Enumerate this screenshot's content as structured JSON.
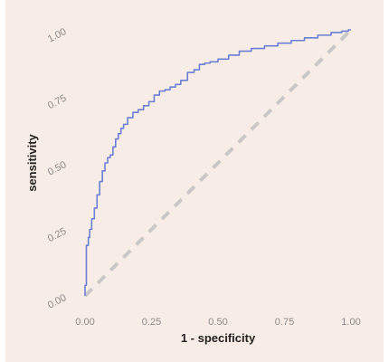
{
  "colors": {
    "background": "#f8ede6",
    "curve": "#6a7fd4",
    "reference": "#c8c8c8",
    "tick_text": "#8a8a8a",
    "axis_title": "#222222"
  },
  "chart_data": {
    "type": "line",
    "title": "",
    "xlabel": "1 - specificity",
    "ylabel": "sensitivity",
    "xlim": [
      0,
      1
    ],
    "ylim": [
      0,
      1
    ],
    "x_ticks": [
      "0.00",
      "0.25",
      "0.50",
      "0.75",
      "1.00"
    ],
    "y_ticks": [
      "0.00",
      "0.25",
      "0.50",
      "0.75",
      "1.00"
    ],
    "grid": false,
    "series": [
      {
        "style": "solid",
        "x": [
          0,
          0,
          0.01,
          0.015,
          0.02,
          0.03,
          0.04,
          0.05,
          0.06,
          0.07,
          0.08,
          0.09,
          0.1,
          0.11,
          0.12,
          0.13,
          0.14,
          0.15,
          0.17,
          0.19,
          0.21,
          0.23,
          0.25,
          0.27,
          0.29,
          0.31,
          0.33,
          0.35,
          0.37,
          0.4,
          0.42,
          0.44,
          0.46,
          0.48,
          0.52,
          0.56,
          0.6,
          0.65,
          0.7,
          0.75,
          0.8,
          0.85,
          0.9,
          0.95,
          0.98,
          1.0
        ],
        "y": [
          0,
          0.04,
          0.19,
          0.22,
          0.25,
          0.29,
          0.33,
          0.38,
          0.43,
          0.47,
          0.5,
          0.52,
          0.53,
          0.56,
          0.59,
          0.61,
          0.63,
          0.645,
          0.67,
          0.69,
          0.7,
          0.715,
          0.73,
          0.755,
          0.77,
          0.775,
          0.785,
          0.795,
          0.81,
          0.84,
          0.85,
          0.87,
          0.875,
          0.88,
          0.89,
          0.905,
          0.92,
          0.93,
          0.94,
          0.95,
          0.96,
          0.97,
          0.98,
          0.99,
          0.995,
          1.0
        ]
      },
      {
        "style": "dashed",
        "x": [
          0,
          1
        ],
        "y": [
          0,
          1
        ]
      }
    ]
  }
}
